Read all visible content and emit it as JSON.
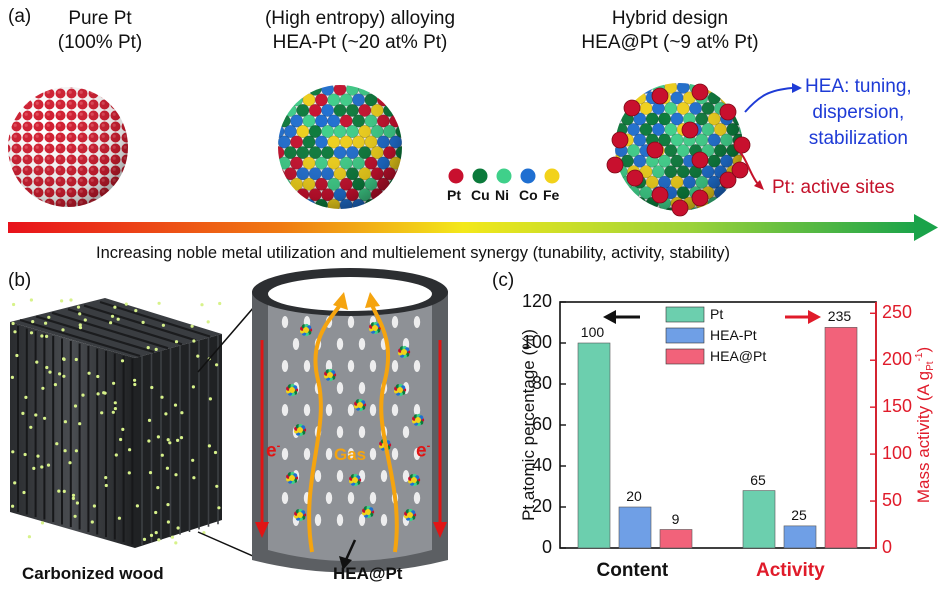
{
  "panel_a": {
    "label": "(a)",
    "pure": {
      "title": "Pure Pt",
      "subtitle": "(100% Pt)"
    },
    "alloy": {
      "title": "(High entropy) alloying",
      "subtitle": "HEA-Pt (~20 at% Pt)"
    },
    "hybrid": {
      "title": "Hybrid design",
      "subtitle": "HEA@Pt (~9 at% Pt)"
    },
    "legend": [
      {
        "label": "Pt",
        "color": "#c8102e"
      },
      {
        "label": "Cu",
        "color": "#0b7a3b"
      },
      {
        "label": "Ni",
        "color": "#3fd08a"
      },
      {
        "label": "Co",
        "color": "#1f6fd1"
      },
      {
        "label": "Fe",
        "color": "#f2d21a"
      }
    ],
    "hea_note_lines": [
      "HEA: tuning,",
      "dispersion,",
      "stabilization"
    ],
    "pt_note": "Pt: active sites",
    "arrow_caption": "Increasing noble metal utilization and multielement synergy (tunability, activity, stability)"
  },
  "panel_b": {
    "label": "(b)",
    "wood_caption": "Carbonized wood",
    "channel_caption": "HEA@Pt",
    "gas_label": "Gas",
    "electron_label": "e"
  },
  "panel_c": {
    "label": "(c)",
    "chart_data": {
      "type": "bar",
      "categories": [
        "Content",
        "Activity"
      ],
      "ylabel": "Pt atomic percentage (%)",
      "y2label": "Mass activity (A g",
      "y2label_sub": "Pt",
      "y2label_sup": "-1",
      "y2label_end": ")",
      "ylim": [
        0,
        120
      ],
      "y2lim": [
        0,
        262
      ],
      "yticks": [
        0,
        20,
        40,
        60,
        80,
        100,
        120
      ],
      "y2ticks": [
        0,
        50,
        100,
        150,
        200,
        250
      ],
      "series": [
        {
          "name": "Pt",
          "color": "#6ccfae",
          "values": [
            100,
            65
          ],
          "labels": [
            "100",
            "65"
          ]
        },
        {
          "name": "HEA-Pt",
          "color": "#6f9fe6",
          "values": [
            20,
            25
          ],
          "labels": [
            "20",
            "25"
          ]
        },
        {
          "name": "HEA@Pt",
          "color": "#f2627a",
          "values": [
            9,
            235
          ],
          "labels": [
            "9",
            "235"
          ]
        }
      ],
      "category_colors": [
        "#111111",
        "#e01b2a"
      ]
    }
  }
}
